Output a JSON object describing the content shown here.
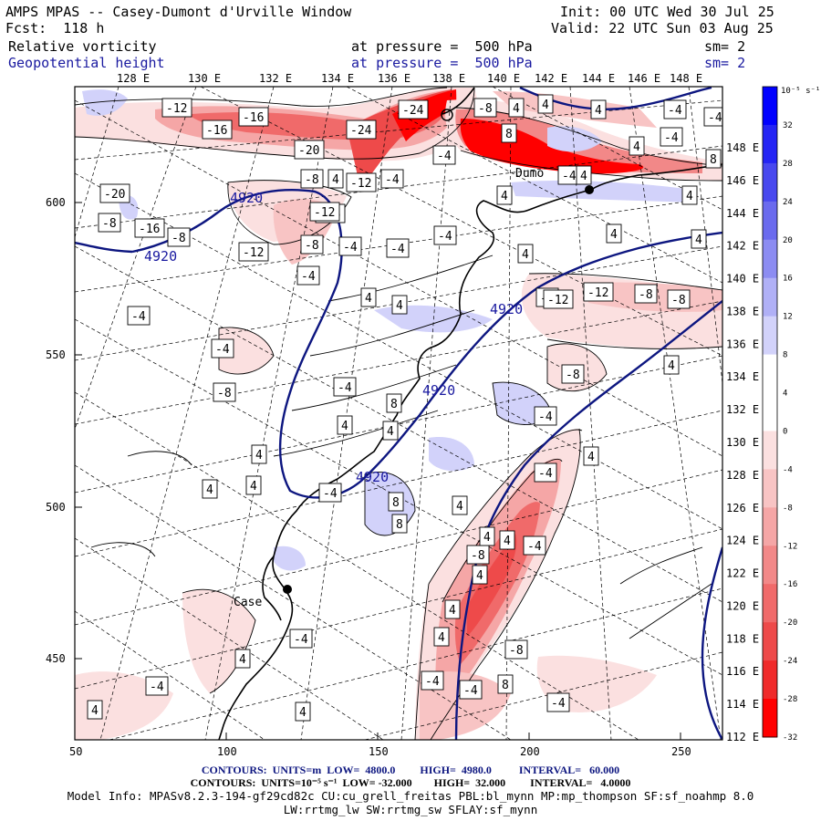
{
  "header": {
    "title": "AMPS MPAS -- Casey-Dumont d'Urville Window",
    "fcst": "Fcst:  118 h",
    "init": "Init: 00 UTC Wed 30 Jul 25",
    "valid": "Valid: 22 UTC Sun 03 Aug 25",
    "field1": {
      "name": "Relative vorticity",
      "level": "at pressure =  500 hPa",
      "sm": "sm= 2"
    },
    "field2": {
      "name": "Geopotential height",
      "level": "at pressure =  500 hPa",
      "sm": "sm= 2"
    }
  },
  "map": {
    "top_lon_labels": [
      "128 E",
      "130 E",
      "132 E",
      "134 E",
      "136 E",
      "138 E",
      "140 E",
      "142 E",
      "144 E",
      "146 E",
      "148 E"
    ],
    "right_lat_labels": [
      "148 E",
      "146 E",
      "144 E",
      "142 E",
      "140 E",
      "138 E",
      "136 E",
      "134 E",
      "132 E",
      "130 E",
      "128 E",
      "126 E",
      "124 E",
      "122 E",
      "120 E",
      "118 E",
      "116 E",
      "114 E",
      "112 E"
    ],
    "y_ticks": [
      "600",
      "550",
      "500",
      "450"
    ],
    "x_ticks": [
      "50",
      "100",
      "150",
      "200",
      "250"
    ],
    "station_label": "Case",
    "station_label2": "Dumo",
    "height_labels": [
      "4920",
      "4920",
      "4920",
      "4920",
      "4920"
    ],
    "vort_labels": [
      "-12",
      "-16",
      "-16",
      "-20",
      "-24",
      "-24",
      "-4",
      "-4",
      "4",
      "-4",
      "-8",
      "-12",
      "-16",
      "-8",
      "-12",
      "-8",
      "4",
      "8",
      "4",
      "4",
      "4",
      "-4",
      "-4",
      "-4",
      "8",
      "4",
      "4",
      "-4",
      "4",
      "4",
      "-12",
      "-8",
      "-8",
      "-4",
      "4",
      "4",
      "-8",
      "4",
      "-4",
      "4",
      "-4",
      "8",
      "-4",
      "4",
      "4",
      "-8",
      "-4",
      "4",
      "4",
      "4",
      "4",
      "8",
      "8",
      "4",
      "-12",
      "-8",
      "-20",
      "-16",
      "-8",
      "-4",
      "-4",
      "-4",
      "4",
      "4",
      "-4",
      "-12",
      "4",
      "4",
      "4",
      "4",
      "-8",
      "-4",
      "-4",
      "-4",
      "4",
      "-4",
      "4",
      "4",
      "-4",
      "-4",
      "8",
      "-8",
      "-4"
    ]
  },
  "colorbar": {
    "unit": "10⁻⁵ s⁻¹",
    "labels": [
      "32",
      "28",
      "24",
      "20",
      "16",
      "12",
      "8",
      "4",
      "0",
      "-4",
      "-8",
      "-12",
      "-16",
      "-20",
      "-24",
      "-28",
      "-32"
    ],
    "colors": [
      "#0000ff",
      "#2424f4",
      "#4848ef",
      "#6a6aee",
      "#8c8cf2",
      "#b0b0f6",
      "#d2d2fa",
      "#ffffff",
      "#ffffff",
      "#fbe0e0",
      "#f8c4c4",
      "#f5a6a6",
      "#f28888",
      "#f06a6a",
      "#ee4a4a",
      "#f02a2a",
      "#ff0000"
    ]
  },
  "footer": {
    "line1": "CONTOURS:  UNITS=m  LOW=  4800.0         HIGH=  4980.0          INTERVAL=   60.000",
    "line2": "CONTOURS:  UNITS=10⁻⁵ s⁻¹  LOW= -32.000        HIGH=  32.000         INTERVAL=   4.0000",
    "line3": "Model Info: MPASv8.2.3-194-gf29cd82c CU:cu_grell_freitas PBL:bl_mynn MP:mp_thompson SF:sf_noahmp 8.0",
    "line4": "LW:rrtmg_lw SW:rrtmg_sw SFLAY:sf_mynn"
  }
}
